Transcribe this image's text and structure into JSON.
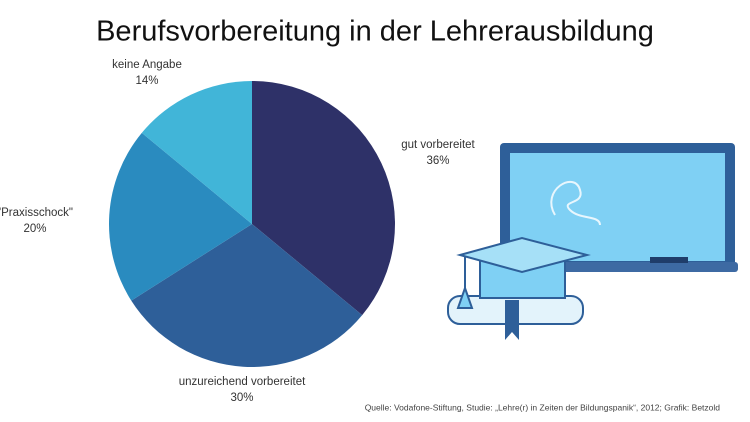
{
  "chart_data": {
    "type": "pie",
    "title": "Berufsvorbereitung in der Lehrerausbildung",
    "categories": [
      "gut vorbereitet",
      "unzureichend vorbereitet",
      "\"Praxisschock\"",
      "keine Angabe"
    ],
    "values": [
      36,
      30,
      20,
      14
    ],
    "value_labels": [
      "36%",
      "30%",
      "20%",
      "14%"
    ],
    "colors": [
      "#2e3168",
      "#2e5f99",
      "#2a8bbf",
      "#41b5d8"
    ],
    "source": "Quelle: Vodafone-Stiftung, Studie: „Lehre(r) in Zeiten der Bildungspanik“, 2012; Grafik: Betzold"
  }
}
